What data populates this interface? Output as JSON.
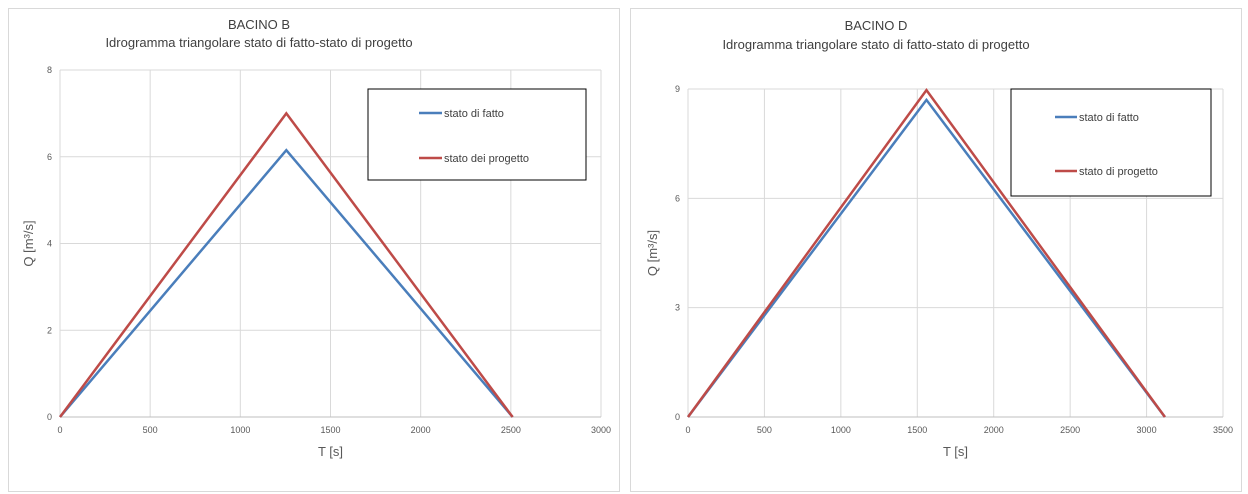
{
  "chart_data": [
    {
      "type": "line",
      "title": "BACINO B",
      "subtitle": "Idrogramma triangolare stato di fatto-stato di progetto",
      "xlabel": "T [s]",
      "ylabel": "Q [m³/s]",
      "xlim": [
        0,
        3000
      ],
      "ylim": [
        0,
        8
      ],
      "xticks": [
        0,
        500,
        1000,
        1500,
        2000,
        2500,
        3000
      ],
      "yticks": [
        0,
        2,
        4,
        6,
        8
      ],
      "grid": true,
      "legend_position": "top-right",
      "series": [
        {
          "name": "stato di fatto",
          "color": "#4a7ebb",
          "x": [
            0,
            1255,
            2510
          ],
          "y": [
            0,
            6.15,
            0
          ]
        },
        {
          "name": "stato dei progetto",
          "color": "#be4b48",
          "x": [
            0,
            1255,
            2510
          ],
          "y": [
            0,
            7.0,
            0
          ]
        }
      ]
    },
    {
      "type": "line",
      "title": "BACINO D",
      "subtitle": "Idrogramma triangolare stato di fatto-stato di progetto",
      "xlabel": "T [s]",
      "ylabel": "Q [m³/s]",
      "xlim": [
        0,
        3500
      ],
      "ylim": [
        0,
        9
      ],
      "xticks": [
        0,
        500,
        1000,
        1500,
        2000,
        2500,
        3000,
        3500
      ],
      "yticks": [
        0,
        3,
        6,
        9
      ],
      "grid": true,
      "legend_position": "top-right",
      "series": [
        {
          "name": "stato di fatto",
          "color": "#4a7ebb",
          "x": [
            0,
            1560,
            3120
          ],
          "y": [
            0,
            8.7,
            0
          ]
        },
        {
          "name": "stato di progetto",
          "color": "#be4b48",
          "x": [
            0,
            1560,
            3120
          ],
          "y": [
            0,
            8.97,
            0
          ]
        }
      ]
    }
  ]
}
